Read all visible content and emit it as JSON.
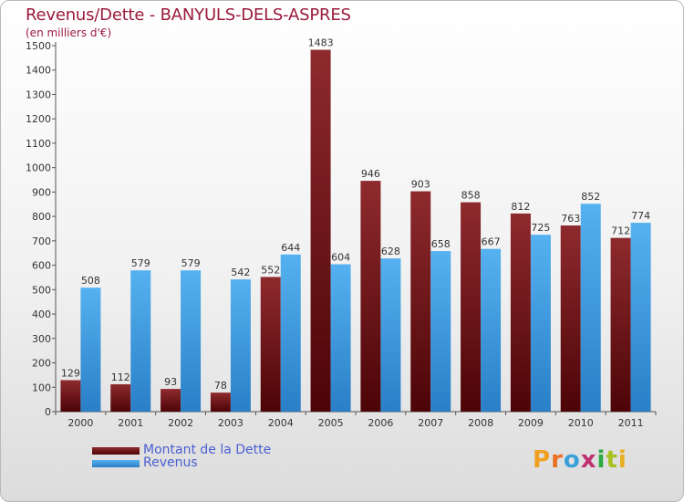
{
  "header": {
    "title": "Revenus/Dette - BANYULS-DELS-ASPRES",
    "subtitle": "(en milliers d'€)"
  },
  "colors": {
    "dette": "#6b0d12",
    "revenus": "#3f9ee6",
    "title": "#9b1a3c",
    "legend_text": "#4a5fd0"
  },
  "chart_data": {
    "type": "bar",
    "title": "Revenus/Dette - BANYULS-DELS-ASPRES",
    "ylabel": "(en milliers d'€)",
    "xlabel": "",
    "ylim": [
      0,
      1500
    ],
    "yticks": [
      0,
      100,
      200,
      300,
      400,
      500,
      600,
      700,
      800,
      900,
      1000,
      1100,
      1200,
      1300,
      1400,
      1500
    ],
    "categories": [
      "2000",
      "2001",
      "2002",
      "2003",
      "2004",
      "2005",
      "2006",
      "2007",
      "2008",
      "2009",
      "2010",
      "2011"
    ],
    "series": [
      {
        "name": "Montant de la Dette",
        "color": "#6b0d12",
        "values": [
          129,
          112,
          93,
          78,
          552,
          1483,
          946,
          903,
          858,
          812,
          763,
          712
        ]
      },
      {
        "name": "Revenus",
        "color": "#3f9ee6",
        "values": [
          508,
          579,
          579,
          542,
          644,
          604,
          628,
          658,
          667,
          725,
          852,
          774
        ]
      }
    ],
    "grid": false,
    "legend": "bottom-left"
  },
  "legend": {
    "items": [
      {
        "label": "Montant de la Dette"
      },
      {
        "label": "Revenus"
      }
    ]
  },
  "logo": {
    "letters": [
      "P",
      "r",
      "o",
      "x",
      "i",
      "t",
      "i"
    ],
    "colors": [
      "#f0a020",
      "#e87020",
      "#38a0d8",
      "#c03070",
      "#2eaa44",
      "#a8c020",
      "#e8b020"
    ]
  }
}
